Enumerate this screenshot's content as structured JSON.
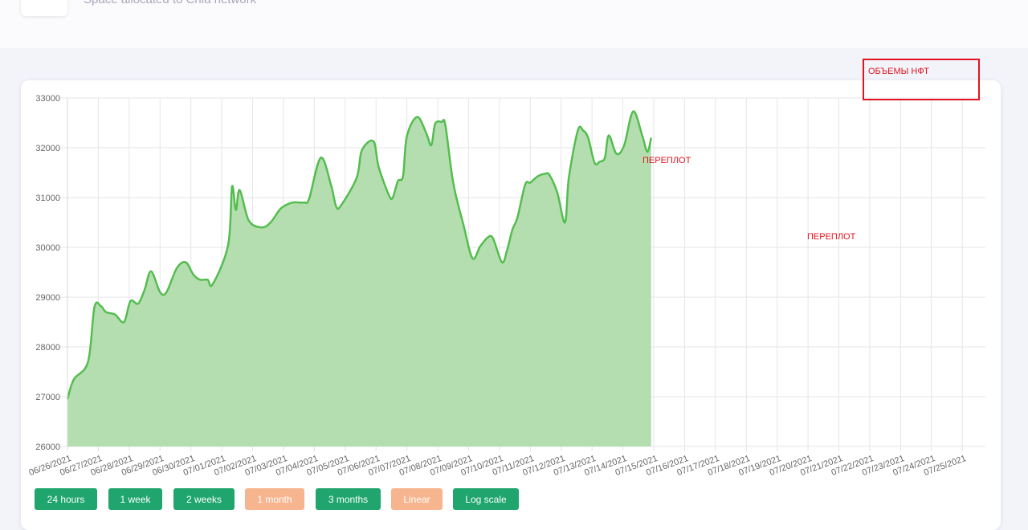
{
  "header": {
    "subtitle": "Space allocated to Chia network ™"
  },
  "annotations": {
    "box_label": "ОБЪЕМЫ НФТ",
    "note_1": "ПЕРЕПЛОТ",
    "note_2": "ПЕРЕПЛОТ"
  },
  "colors": {
    "line": "#54bd4f",
    "fill": "#b4deb0",
    "annotation": "#e0141e",
    "button_active": "#1fa56d",
    "button_inactive": "#f6b58e"
  },
  "buttons": [
    {
      "label": "24 hours",
      "state": "active"
    },
    {
      "label": "1 week",
      "state": "active"
    },
    {
      "label": "2 weeks",
      "state": "active"
    },
    {
      "label": "1 month",
      "state": "inactive"
    },
    {
      "label": "3 months",
      "state": "active"
    },
    {
      "label": "Linear",
      "state": "inactive"
    },
    {
      "label": "Log scale",
      "state": "active"
    }
  ],
  "chart_data": {
    "type": "area",
    "title": "",
    "xlabel": "",
    "ylabel": "",
    "ylim": [
      26000,
      33000
    ],
    "yticks": [
      26000,
      27000,
      28000,
      29000,
      30000,
      31000,
      32000,
      33000
    ],
    "xlim": [
      "06/26/2021",
      "07/25/2021 18:00"
    ],
    "xticks": [
      "06/26/2021",
      "06/27/2021",
      "06/28/2021",
      "06/29/2021",
      "06/30/2021",
      "07/01/2021",
      "07/02/2021",
      "07/03/2021",
      "07/04/2021",
      "07/05/2021",
      "07/06/2021",
      "07/07/2021",
      "07/08/2021",
      "07/09/2021",
      "07/10/2021",
      "07/11/2021",
      "07/12/2021",
      "07/13/2021",
      "07/14/2021",
      "07/15/2021",
      "07/16/2021",
      "07/17/2021",
      "07/18/2021",
      "07/19/2021",
      "07/20/2021",
      "07/21/2021",
      "07/22/2021",
      "07/23/2021",
      "07/24/2021",
      "07/25/2021"
    ],
    "grid": true,
    "legend": "none",
    "series": [
      {
        "points": [
          [
            "06/26/2021 00:00",
            26950
          ],
          [
            "06/26/2021 05:00",
            27350
          ],
          [
            "06/26/2021 16:00",
            27700
          ],
          [
            "06/26/2021 21:00",
            28800
          ],
          [
            "06/27/2021 02:00",
            28820
          ],
          [
            "06/27/2021 06:00",
            28700
          ],
          [
            "06/27/2021 13:00",
            28650
          ],
          [
            "06/27/2021 20:00",
            28500
          ],
          [
            "06/28/2021 01:00",
            28920
          ],
          [
            "06/28/2021 07:00",
            28870
          ],
          [
            "06/28/2021 12:00",
            29150
          ],
          [
            "06/28/2021 17:00",
            29520
          ],
          [
            "06/29/2021 00:00",
            29100
          ],
          [
            "06/29/2021 05:00",
            29100
          ],
          [
            "06/29/2021 13:00",
            29580
          ],
          [
            "06/29/2021 20:00",
            29700
          ],
          [
            "06/30/2021 02:00",
            29450
          ],
          [
            "06/30/2021 07:00",
            29350
          ],
          [
            "06/30/2021 13:00",
            29350
          ],
          [
            "06/30/2021 17:00",
            29260
          ],
          [
            "07/01/2021 05:00",
            30050
          ],
          [
            "07/01/2021 08:00",
            31220
          ],
          [
            "07/01/2021 11:00",
            30750
          ],
          [
            "07/01/2021 14:00",
            31150
          ],
          [
            "07/01/2021 21:00",
            30540
          ],
          [
            "07/02/2021 07:00",
            30400
          ],
          [
            "07/02/2021 14:00",
            30500
          ],
          [
            "07/02/2021 22:00",
            30780
          ],
          [
            "07/03/2021 07:00",
            30900
          ],
          [
            "07/03/2021 16:00",
            30900
          ],
          [
            "07/03/2021 20:00",
            30980
          ],
          [
            "07/04/2021 05:00",
            31800
          ],
          [
            "07/04/2021 13:00",
            31250
          ],
          [
            "07/04/2021 17:00",
            30820
          ],
          [
            "07/04/2021 21:00",
            30850
          ],
          [
            "07/05/2021 09:00",
            31400
          ],
          [
            "07/05/2021 13:00",
            31950
          ],
          [
            "07/05/2021 22:00",
            32130
          ],
          [
            "07/06/2021 02:00",
            31620
          ],
          [
            "07/06/2021 10:00",
            31050
          ],
          [
            "07/06/2021 13:00",
            31000
          ],
          [
            "07/06/2021 17:00",
            31330
          ],
          [
            "07/06/2021 21:00",
            31430
          ],
          [
            "07/07/2021 00:00",
            32230
          ],
          [
            "07/07/2021 08:00",
            32620
          ],
          [
            "07/07/2021 15:00",
            32300
          ],
          [
            "07/07/2021 19:00",
            32050
          ],
          [
            "07/07/2021 22:00",
            32480
          ],
          [
            "07/08/2021 03:00",
            32520
          ],
          [
            "07/08/2021 06:00",
            32450
          ],
          [
            "07/08/2021 12:00",
            31300
          ],
          [
            "07/08/2021 20:00",
            30450
          ],
          [
            "07/09/2021 03:00",
            29780
          ],
          [
            "07/09/2021 09:00",
            30020
          ],
          [
            "07/09/2021 15:00",
            30200
          ],
          [
            "07/09/2021 19:00",
            30180
          ],
          [
            "07/10/2021 02:00",
            29700
          ],
          [
            "07/10/2021 06:00",
            29950
          ],
          [
            "07/10/2021 10:00",
            30350
          ],
          [
            "07/10/2021 14:00",
            30600
          ],
          [
            "07/10/2021 20:00",
            31260
          ],
          [
            "07/11/2021 00:00",
            31300
          ],
          [
            "07/11/2021 06:00",
            31430
          ],
          [
            "07/11/2021 12:00",
            31480
          ],
          [
            "07/11/2021 15:00",
            31450
          ],
          [
            "07/11/2021 21:00",
            31100
          ],
          [
            "07/12/2021 03:00",
            30500
          ],
          [
            "07/12/2021 06:00",
            31400
          ],
          [
            "07/12/2021 13:00",
            32350
          ],
          [
            "07/12/2021 17:00",
            32350
          ],
          [
            "07/12/2021 21:00",
            32200
          ],
          [
            "07/13/2021 02:00",
            31700
          ],
          [
            "07/13/2021 06:00",
            31720
          ],
          [
            "07/13/2021 10:00",
            31800
          ],
          [
            "07/13/2021 13:00",
            32250
          ],
          [
            "07/13/2021 19:00",
            31880
          ],
          [
            "07/14/2021 01:00",
            32050
          ],
          [
            "07/14/2021 08:00",
            32730
          ],
          [
            "07/14/2021 15:00",
            32250
          ],
          [
            "07/14/2021 19:00",
            31920
          ],
          [
            "07/14/2021 22:00",
            32200
          ]
        ]
      }
    ]
  }
}
